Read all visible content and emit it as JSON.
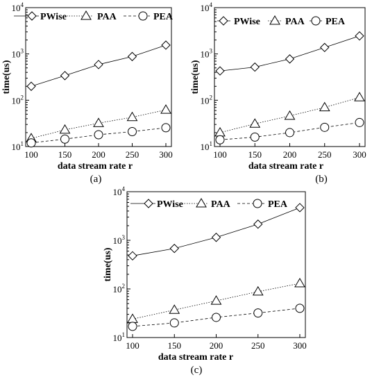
{
  "chart_data": [
    {
      "type": "line",
      "panel_label": "(a)",
      "xlabel": "data stream rate r",
      "ylabel": "time(us)",
      "yscale": "log",
      "ylim": [
        10,
        10000
      ],
      "xlim": [
        100,
        300
      ],
      "x": [
        100,
        150,
        200,
        250,
        300
      ],
      "x_tick_labels": [
        "100",
        "150",
        "200",
        "250",
        "300"
      ],
      "y_tick_labels": [
        {
          "base": "10",
          "exp": "1"
        },
        {
          "base": "10",
          "exp": "2"
        },
        {
          "base": "10",
          "exp": "3"
        },
        {
          "base": "10",
          "exp": "4"
        }
      ],
      "grid": false,
      "legend": "top",
      "series": [
        {
          "name": "PWise",
          "marker": "diamond",
          "line": "solid",
          "values": [
            200,
            340,
            590,
            880,
            1550
          ]
        },
        {
          "name": "PAA",
          "marker": "triangle",
          "line": "dotted",
          "values": [
            15,
            23,
            32,
            43,
            62
          ]
        },
        {
          "name": "PEA",
          "marker": "circle",
          "line": "dashed",
          "values": [
            12,
            14.5,
            18,
            21,
            25.5
          ]
        }
      ]
    },
    {
      "type": "line",
      "panel_label": "(b)",
      "xlabel": "data  stream rate r",
      "ylabel": "time(us)",
      "yscale": "log",
      "ylim": [
        10,
        10000
      ],
      "xlim": [
        100,
        300
      ],
      "x": [
        100,
        150,
        200,
        250,
        300
      ],
      "x_tick_labels": [
        "100",
        "150",
        "200",
        "250",
        "300"
      ],
      "y_tick_labels": [
        {
          "base": "10",
          "exp": "1"
        },
        {
          "base": "10",
          "exp": "2"
        },
        {
          "base": "10",
          "exp": "3"
        },
        {
          "base": "10",
          "exp": "4"
        }
      ],
      "grid": false,
      "legend": "top",
      "series": [
        {
          "name": "PWise",
          "marker": "diamond",
          "line": "solid",
          "values": [
            430,
            520,
            780,
            1380,
            2450
          ]
        },
        {
          "name": "PAA",
          "marker": "triangle",
          "line": "dotted",
          "values": [
            20,
            31,
            46,
            70,
            115
          ]
        },
        {
          "name": "PEA",
          "marker": "circle",
          "line": "dashed",
          "values": [
            14,
            16,
            20,
            26,
            33
          ]
        }
      ]
    },
    {
      "type": "line",
      "panel_label": "(c)",
      "xlabel": "data stream rate r",
      "ylabel": "time(us)",
      "yscale": "log",
      "ylim": [
        10,
        10000
      ],
      "xlim": [
        100,
        300
      ],
      "x": [
        100,
        150,
        200,
        250,
        300
      ],
      "x_tick_labels": [
        "100",
        "150",
        "200",
        "250",
        "300"
      ],
      "y_tick_labels": [
        {
          "base": "10",
          "exp": "1"
        },
        {
          "base": "10",
          "exp": "2"
        },
        {
          "base": "10",
          "exp": "3"
        },
        {
          "base": "10",
          "exp": "4"
        }
      ],
      "grid": false,
      "legend": "top",
      "series": [
        {
          "name": "PWise",
          "marker": "diamond",
          "line": "solid",
          "values": [
            480,
            680,
            1150,
            2150,
            4700
          ]
        },
        {
          "name": "PAA",
          "marker": "triangle",
          "line": "dotted",
          "values": [
            24,
            37,
            57,
            88,
            130
          ]
        },
        {
          "name": "PEA",
          "marker": "circle",
          "line": "dashed",
          "values": [
            17,
            20,
            26,
            32,
            40
          ]
        }
      ]
    }
  ]
}
